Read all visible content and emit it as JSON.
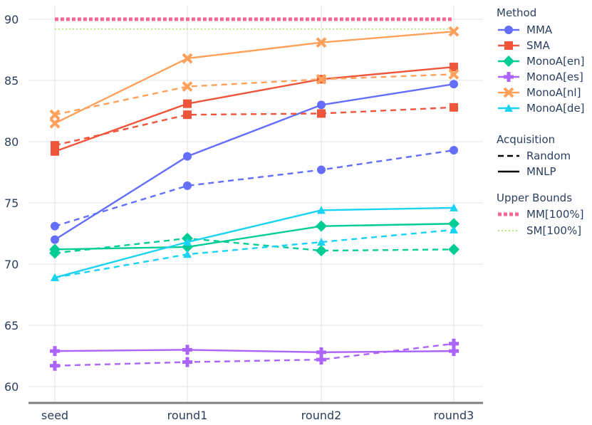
{
  "chart_data": {
    "type": "line",
    "categories": [
      "seed",
      "round1",
      "round2",
      "round3"
    ],
    "ylim": [
      58,
      92
    ],
    "yticks": [
      60,
      65,
      70,
      75,
      80,
      85,
      90
    ],
    "grid": true,
    "legend_position": "right",
    "legend": {
      "method_title": "Method",
      "acquisition_title": "Acquisition",
      "acquisition_items": [
        {
          "label": "Random",
          "dash": "dashed"
        },
        {
          "label": "MNLP",
          "dash": "solid"
        }
      ],
      "bounds_title": "Upper Bounds"
    },
    "series": [
      {
        "name": "MMA",
        "color": "#636efa",
        "marker": "circle",
        "random": [
          73.1,
          76.4,
          77.7,
          79.3
        ],
        "mnlp": [
          72.0,
          78.8,
          83.0,
          84.7
        ]
      },
      {
        "name": "SMA",
        "color": "#ef553b",
        "marker": "square",
        "random": [
          79.7,
          82.2,
          82.3,
          82.8
        ],
        "mnlp": [
          79.2,
          83.1,
          85.1,
          86.1
        ]
      },
      {
        "name": "MonoA[en]",
        "color": "#00cc96",
        "marker": "diamond",
        "random": [
          70.9,
          72.1,
          71.1,
          71.2
        ],
        "mnlp": [
          71.2,
          71.4,
          73.1,
          73.3
        ]
      },
      {
        "name": "MonoA[es]",
        "color": "#ab63fa",
        "marker": "cross",
        "random": [
          61.7,
          62.0,
          62.2,
          63.5
        ],
        "mnlp": [
          62.9,
          63.0,
          62.8,
          62.9
        ]
      },
      {
        "name": "MonoA[nl]",
        "color": "#ffa15a",
        "marker": "x",
        "random": [
          82.2,
          84.5,
          85.1,
          85.5
        ],
        "mnlp": [
          81.5,
          86.8,
          88.1,
          89.0
        ]
      },
      {
        "name": "MonoA[de]",
        "color": "#19d3f3",
        "marker": "triangle",
        "random": [
          68.9,
          70.8,
          71.8,
          72.8
        ],
        "mnlp": [
          68.9,
          71.8,
          74.4,
          74.6
        ]
      }
    ],
    "upper_bounds": [
      {
        "name": "MM[100%]",
        "value": 90.0,
        "color": "#ff6692",
        "style": "dotted-thick"
      },
      {
        "name": "SM[100%]",
        "value": 89.2,
        "color": "#b6e880",
        "style": "dotted-thin"
      }
    ]
  }
}
